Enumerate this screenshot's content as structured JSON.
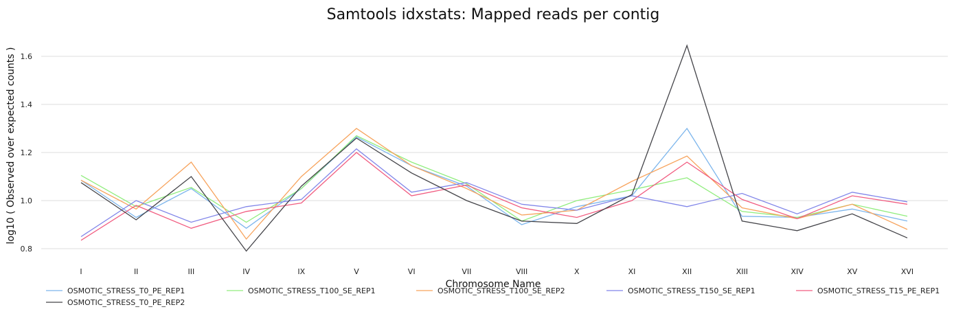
{
  "chart_data": {
    "type": "line",
    "title": "Samtools idxstats: Mapped reads per contig",
    "xlabel": "Chromosome Name",
    "ylabel": "log10 ( Observed over expected counts )",
    "categories": [
      "I",
      "II",
      "III",
      "IV",
      "IX",
      "V",
      "VI",
      "VII",
      "VIII",
      "X",
      "XI",
      "XII",
      "XIII",
      "XIV",
      "XV",
      "XVI"
    ],
    "ylim": [
      0.72,
      1.72
    ],
    "yticks": [
      0.8,
      1.0,
      1.2,
      1.4,
      1.6
    ],
    "ytick_labels": [
      "0.8",
      "1.0",
      "1.2",
      "1.4",
      "1.6"
    ],
    "grid": true,
    "legend_position": "bottom",
    "series": [
      {
        "name": "OSMOTIC_STRESS_T0_PE_REP1",
        "color": "#7cb5ec",
        "values": [
          1.085,
          0.93,
          1.05,
          0.885,
          1.05,
          1.265,
          1.145,
          1.06,
          0.9,
          0.975,
          1.02,
          1.3,
          0.935,
          0.93,
          0.965,
          0.915
        ]
      },
      {
        "name": "OSMOTIC_STRESS_T100_SE_REP1",
        "color": "#90ed7d",
        "values": [
          1.105,
          0.975,
          1.055,
          0.91,
          1.05,
          1.27,
          1.16,
          1.07,
          0.915,
          1.0,
          1.045,
          1.095,
          0.955,
          0.93,
          0.985,
          0.935
        ]
      },
      {
        "name": "OSMOTIC_STRESS_T100_SE_REP2",
        "color": "#f7a35c",
        "values": [
          1.085,
          0.965,
          1.16,
          0.84,
          1.1,
          1.3,
          1.145,
          1.05,
          0.94,
          0.96,
          1.08,
          1.185,
          0.97,
          0.925,
          0.985,
          0.88
        ]
      },
      {
        "name": "OSMOTIC_STRESS_T150_SE_REP1",
        "color": "#8085e9",
        "values": [
          0.85,
          1.0,
          0.91,
          0.975,
          1.005,
          1.215,
          1.035,
          1.075,
          0.985,
          0.96,
          1.02,
          0.975,
          1.03,
          0.945,
          1.035,
          0.995
        ]
      },
      {
        "name": "OSMOTIC_STRESS_T15_PE_REP1",
        "color": "#f15c80",
        "values": [
          0.835,
          0.98,
          0.885,
          0.955,
          0.99,
          1.2,
          1.02,
          1.065,
          0.97,
          0.93,
          1.0,
          1.16,
          1.005,
          0.925,
          1.02,
          0.985
        ]
      },
      {
        "name": "OSMOTIC_STRESS_T0_PE_REP2",
        "color": "#434348",
        "values": [
          1.075,
          0.92,
          1.1,
          0.79,
          1.06,
          1.26,
          1.115,
          1.0,
          0.915,
          0.905,
          1.025,
          1.645,
          0.915,
          0.875,
          0.945,
          0.845
        ]
      }
    ]
  }
}
